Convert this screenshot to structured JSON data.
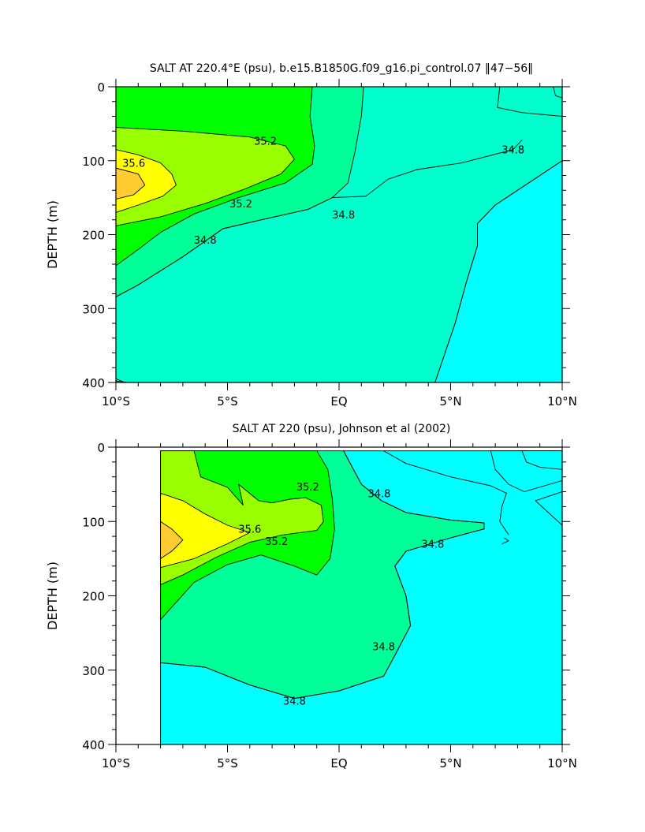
{
  "colors": {
    "c34_4": "#00ffff",
    "c34_6": "#00ffcc",
    "c34_8": "#00ff99",
    "c35_0": "#00ff00",
    "c35_2": "#99ff00",
    "c35_6": "#ffff00",
    "c35_8": "#ffcc33",
    "c34_2": "#00ccff",
    "missing": "#ffffff",
    "contour_line": "#000000"
  },
  "chart_data": [
    {
      "type": "contour",
      "title": "SALT AT 220.4°E (psu), b.e15.B1850G.f09_g16.pi_control.07 ‖47−56‖",
      "xlabel": "",
      "ylabel": "DEPTH (m)",
      "xlim": [
        -10,
        10
      ],
      "ylim": [
        400,
        0
      ],
      "x_tick_labels": [
        "10°S",
        "5°S",
        "EQ",
        "5°N",
        "10°N"
      ],
      "x_ticks": [
        -10,
        -5,
        0,
        5,
        10
      ],
      "y_tick_labels": [
        "0",
        "100",
        "200",
        "300",
        "400"
      ],
      "y_ticks": [
        0,
        100,
        200,
        300,
        400
      ],
      "contour_labels": [
        {
          "text": "35.6",
          "lat": -9.2,
          "depth": 103
        },
        {
          "text": "35.2",
          "lat": -3.3,
          "depth": 73
        },
        {
          "text": "35.2",
          "lat": -4.4,
          "depth": 158
        },
        {
          "text": "34.8",
          "lat": 7.8,
          "depth": 85
        },
        {
          "text": "34.8",
          "lat": 0.2,
          "depth": 173
        },
        {
          "text": "34.8",
          "lat": -6.0,
          "depth": 207
        }
      ],
      "regions": [
        {
          "value": 34.4,
          "fill": "c34_4",
          "points": [
            [
              4.3,
              400
            ],
            [
              5.2,
              320
            ],
            [
              5.7,
              265
            ],
            [
              6.2,
              215
            ],
            [
              6.2,
              185
            ],
            [
              7,
              160
            ],
            [
              10,
              100
            ],
            [
              10,
              400
            ]
          ]
        },
        {
          "value": 34.8,
          "fill": "c34_8",
          "points": [
            [
              -10,
              0
            ],
            [
              1.1,
              0
            ],
            [
              1.0,
              40
            ],
            [
              0.7,
              90
            ],
            [
              0.4,
              130
            ],
            [
              -0.3,
              150
            ],
            [
              -1.4,
              166
            ],
            [
              -3.5,
              180
            ],
            [
              -5.2,
              192
            ],
            [
              -7,
              230
            ],
            [
              -9,
              268
            ],
            [
              -10,
              284
            ]
          ]
        },
        {
          "value": 35.0,
          "fill": "c35_0",
          "points": [
            [
              -10,
              0
            ],
            [
              -5,
              0
            ],
            [
              -1.2,
              0
            ],
            [
              -1.3,
              40
            ],
            [
              -1.1,
              80
            ],
            [
              -1.2,
              105
            ],
            [
              -2.4,
              130
            ],
            [
              -4.5,
              150
            ],
            [
              -6.5,
              172
            ],
            [
              -8,
              197
            ],
            [
              -9,
              220
            ],
            [
              -10,
              242
            ]
          ]
        },
        {
          "value": 35.2,
          "fill": "c35_2",
          "points": [
            [
              -10,
              55
            ],
            [
              -7,
              60
            ],
            [
              -4,
              68
            ],
            [
              -2.4,
              80
            ],
            [
              -2.0,
              98
            ],
            [
              -2.6,
              118
            ],
            [
              -4.2,
              138
            ],
            [
              -6,
              158
            ],
            [
              -8,
              176
            ],
            [
              -10,
              188
            ]
          ]
        },
        {
          "value": 35.6,
          "fill": "c35_6",
          "points": [
            [
              -10,
              85
            ],
            [
              -9,
              92
            ],
            [
              -8,
              103
            ],
            [
              -7.5,
              118
            ],
            [
              -7.3,
              133
            ],
            [
              -7.9,
              148
            ],
            [
              -9,
              160
            ],
            [
              -10,
              170
            ]
          ]
        },
        {
          "value": 35.8,
          "fill": "c35_8",
          "points": [
            [
              -10,
              110
            ],
            [
              -9,
              118
            ],
            [
              -8.7,
              133
            ],
            [
              -9.2,
              146
            ],
            [
              -10,
              152
            ]
          ]
        },
        {
          "value": 34.6,
          "fill": "c34_6",
          "points": [
            [
              -10,
              398
            ],
            [
              -9.5,
              400
            ],
            [
              -10,
              400
            ]
          ]
        }
      ],
      "contour_lines": [
        {
          "value": 34.8,
          "points": [
            [
              -10,
              284
            ],
            [
              -9,
              268
            ],
            [
              -7,
              230
            ],
            [
              -5.2,
              192
            ],
            [
              -3.5,
              180
            ],
            [
              -1.4,
              166
            ],
            [
              -0.3,
              150
            ],
            [
              1.2,
              148
            ],
            [
              2.2,
              125
            ],
            [
              3.5,
              112
            ],
            [
              5.5,
              103
            ],
            [
              7.8,
              85
            ],
            [
              8.2,
              72
            ]
          ]
        },
        {
          "value": 34.6,
          "points": [
            [
              4.3,
              400
            ],
            [
              5.2,
              320
            ],
            [
              5.7,
              265
            ],
            [
              6.2,
              215
            ],
            [
              6.2,
              185
            ],
            [
              7,
              160
            ],
            [
              10,
              100
            ]
          ]
        },
        {
          "value": 34.6,
          "points": [
            [
              7.2,
              0
            ],
            [
              7.1,
              28
            ],
            [
              8.2,
              35
            ],
            [
              10,
              40
            ]
          ]
        },
        {
          "value": 34.4,
          "points": [
            [
              9.6,
              0
            ],
            [
              9.7,
              12
            ],
            [
              10,
              15
            ]
          ]
        },
        {
          "value": 34.6,
          "points": [
            [
              -10,
              395
            ],
            [
              -9.6,
              400
            ]
          ]
        }
      ]
    },
    {
      "type": "contour",
      "title": "SALT AT 220 (psu), Johnson et al (2002)",
      "xlabel": "",
      "ylabel": "DEPTH (m)",
      "xlim": [
        -10,
        10
      ],
      "ylim": [
        400,
        0
      ],
      "x_tick_labels": [
        "10°S",
        "5°S",
        "EQ",
        "5°N",
        "10°N"
      ],
      "x_ticks": [
        -10,
        -5,
        0,
        5,
        10
      ],
      "y_tick_labels": [
        "0",
        "100",
        "200",
        "300",
        "400"
      ],
      "y_ticks": [
        0,
        100,
        200,
        300,
        400
      ],
      "data_xlim": [
        -8,
        10
      ],
      "data_ylim": [
        5,
        400
      ],
      "contour_labels": [
        {
          "text": "35.6",
          "lat": -4.0,
          "depth": 110
        },
        {
          "text": "35.2",
          "lat": -1.4,
          "depth": 53
        },
        {
          "text": "35.2",
          "lat": -2.8,
          "depth": 126
        },
        {
          "text": "34.8",
          "lat": 1.8,
          "depth": 62
        },
        {
          "text": "34.8",
          "lat": 4.2,
          "depth": 130
        },
        {
          "text": "34.8",
          "lat": -2.0,
          "depth": 341
        },
        {
          "text": "34.8",
          "lat": 2.0,
          "depth": 268
        }
      ],
      "regions": [
        {
          "value": 34.4,
          "fill": "c34_4",
          "points": [
            [
              -8,
              290
            ],
            [
              -6,
              296
            ],
            [
              -4,
              320
            ],
            [
              -2,
              338
            ],
            [
              0,
              328
            ],
            [
              2,
              308
            ],
            [
              2.5,
              280
            ],
            [
              3.2,
              240
            ],
            [
              3,
              200
            ],
            [
              2.5,
              160
            ],
            [
              3,
              140
            ],
            [
              5,
              122
            ],
            [
              6.5,
              110
            ],
            [
              6.5,
              102
            ],
            [
              5,
              98
            ],
            [
              3,
              88
            ],
            [
              1.9,
              72
            ],
            [
              1,
              50
            ],
            [
              0.2,
              5
            ],
            [
              10,
              5
            ],
            [
              10,
              400
            ],
            [
              -8,
              400
            ]
          ]
        },
        {
          "value": 34.8,
          "fill": "c34_8",
          "points": [
            [
              -8,
              5
            ],
            [
              0.2,
              5
            ],
            [
              1,
              50
            ],
            [
              1.9,
              72
            ],
            [
              3,
              88
            ],
            [
              5,
              98
            ],
            [
              6.5,
              102
            ],
            [
              6.5,
              110
            ],
            [
              5,
              122
            ],
            [
              3,
              140
            ],
            [
              2.5,
              160
            ],
            [
              3,
              200
            ],
            [
              3.2,
              240
            ],
            [
              2.5,
              280
            ],
            [
              2,
              308
            ],
            [
              0,
              328
            ],
            [
              -2,
              338
            ],
            [
              -4,
              320
            ],
            [
              -6,
              296
            ],
            [
              -8,
              290
            ]
          ]
        },
        {
          "value": 35.0,
          "fill": "c35_0",
          "points": [
            [
              -8,
              5
            ],
            [
              -1.0,
              5
            ],
            [
              -0.5,
              30
            ],
            [
              -0.3,
              70
            ],
            [
              -0.2,
              110
            ],
            [
              -0.4,
              150
            ],
            [
              -1,
              172
            ],
            [
              -2,
              160
            ],
            [
              -3.5,
              145
            ],
            [
              -5,
              158
            ],
            [
              -6.5,
              182
            ],
            [
              -8,
              232
            ]
          ]
        },
        {
          "value": 35.2,
          "fill": "c35_2",
          "points": [
            [
              -8,
              5
            ],
            [
              -6.5,
              5
            ],
            [
              -6.2,
              40
            ],
            [
              -5,
              54
            ],
            [
              -4.3,
              78
            ],
            [
              -4.5,
              50
            ],
            [
              -3.6,
              72
            ],
            [
              -3,
              75
            ],
            [
              -2.2,
              70
            ],
            [
              -1.5,
              68
            ],
            [
              -0.8,
              78
            ],
            [
              -0.7,
              100
            ],
            [
              -1,
              112
            ],
            [
              -2.5,
              118
            ],
            [
              -4,
              128
            ],
            [
              -5.5,
              148
            ],
            [
              -7,
              172
            ],
            [
              -8,
              185
            ]
          ]
        },
        {
          "value": 35.6,
          "fill": "c35_6",
          "points": [
            [
              -8,
              62
            ],
            [
              -7,
              72
            ],
            [
              -6,
              90
            ],
            [
              -5,
              105
            ],
            [
              -4,
              115
            ],
            [
              -5,
              130
            ],
            [
              -6.5,
              150
            ],
            [
              -8,
              162
            ]
          ]
        },
        {
          "value": 35.8,
          "fill": "c35_8",
          "points": [
            [
              -8,
              100
            ],
            [
              -7.5,
              110
            ],
            [
              -7,
              125
            ],
            [
              -7.5,
              140
            ],
            [
              -8,
              150
            ]
          ]
        },
        {
          "value": 34.2,
          "fill": "c34_2",
          "points": [
            [
              8,
              5
            ],
            [
              8.2,
              20
            ],
            [
              9,
              27
            ],
            [
              10,
              25
            ],
            [
              10,
              5
            ]
          ]
        },
        {
          "value": 34.4,
          "fill": "c34_4",
          "points": [
            [
              6.8,
              5
            ],
            [
              7,
              30
            ],
            [
              7.6,
              50
            ],
            [
              8.3,
              60
            ],
            [
              10,
              45
            ],
            [
              10,
              5
            ]
          ]
        }
      ],
      "contour_lines": [
        {
          "value": 34.8,
          "points": [
            [
              -8,
              290
            ],
            [
              -6,
              296
            ],
            [
              -4,
              320
            ],
            [
              -2,
              338
            ],
            [
              0,
              328
            ],
            [
              2,
              308
            ],
            [
              2.5,
              280
            ],
            [
              3.2,
              240
            ],
            [
              3,
              200
            ],
            [
              2.5,
              160
            ],
            [
              3,
              140
            ],
            [
              5,
              122
            ],
            [
              6.5,
              110
            ],
            [
              6.5,
              102
            ],
            [
              5,
              98
            ],
            [
              3,
              88
            ],
            [
              1.9,
              72
            ],
            [
              1,
              50
            ],
            [
              0.2,
              5
            ]
          ]
        },
        {
          "value": 34.6,
          "points": [
            [
              2,
              5
            ],
            [
              3,
              22
            ],
            [
              5,
              40
            ],
            [
              6.8,
              52
            ],
            [
              7.5,
              62
            ],
            [
              7.3,
              80
            ],
            [
              7.2,
              100
            ],
            [
              7.6,
              118
            ]
          ]
        },
        {
          "value": 34.6,
          "points": [
            [
              8.2,
              5
            ],
            [
              8.4,
              20
            ],
            [
              9,
              27
            ],
            [
              10,
              30
            ]
          ]
        },
        {
          "value": 34.6,
          "points": [
            [
              10,
              60
            ],
            [
              8.8,
              72
            ],
            [
              10,
              105
            ]
          ]
        },
        {
          "value": 34.6,
          "points": [
            [
              7.4,
              122
            ],
            [
              7.6,
              126
            ],
            [
              7.3,
              130
            ]
          ]
        }
      ]
    }
  ]
}
